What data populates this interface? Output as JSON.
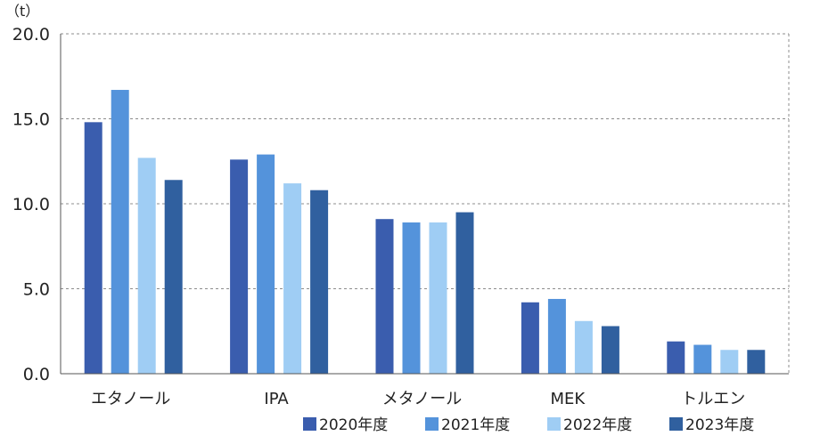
{
  "chart_data": {
    "type": "bar",
    "unit_label": "（t）",
    "title": "",
    "xlabel": "",
    "ylabel": "",
    "ylim": [
      0,
      20
    ],
    "yticks": [
      "0.0",
      "5.0",
      "10.0",
      "15.0",
      "20.0"
    ],
    "grid": true,
    "legend_position": "bottom-right",
    "categories": [
      "エタノール",
      "IPA",
      "メタノール",
      "MEK",
      "トルエン"
    ],
    "series": [
      {
        "name": "2020年度",
        "color": "#3a5dae",
        "values": [
          14.8,
          12.6,
          9.1,
          4.2,
          1.9
        ]
      },
      {
        "name": "2021年度",
        "color": "#5493db",
        "values": [
          16.7,
          12.9,
          8.9,
          4.4,
          1.7
        ]
      },
      {
        "name": "2022年度",
        "color": "#9fcdf4",
        "values": [
          12.7,
          11.2,
          8.9,
          3.1,
          1.4
        ]
      },
      {
        "name": "2023年度",
        "color": "#30609f",
        "values": [
          11.4,
          10.8,
          9.5,
          2.8,
          1.4
        ]
      }
    ]
  }
}
